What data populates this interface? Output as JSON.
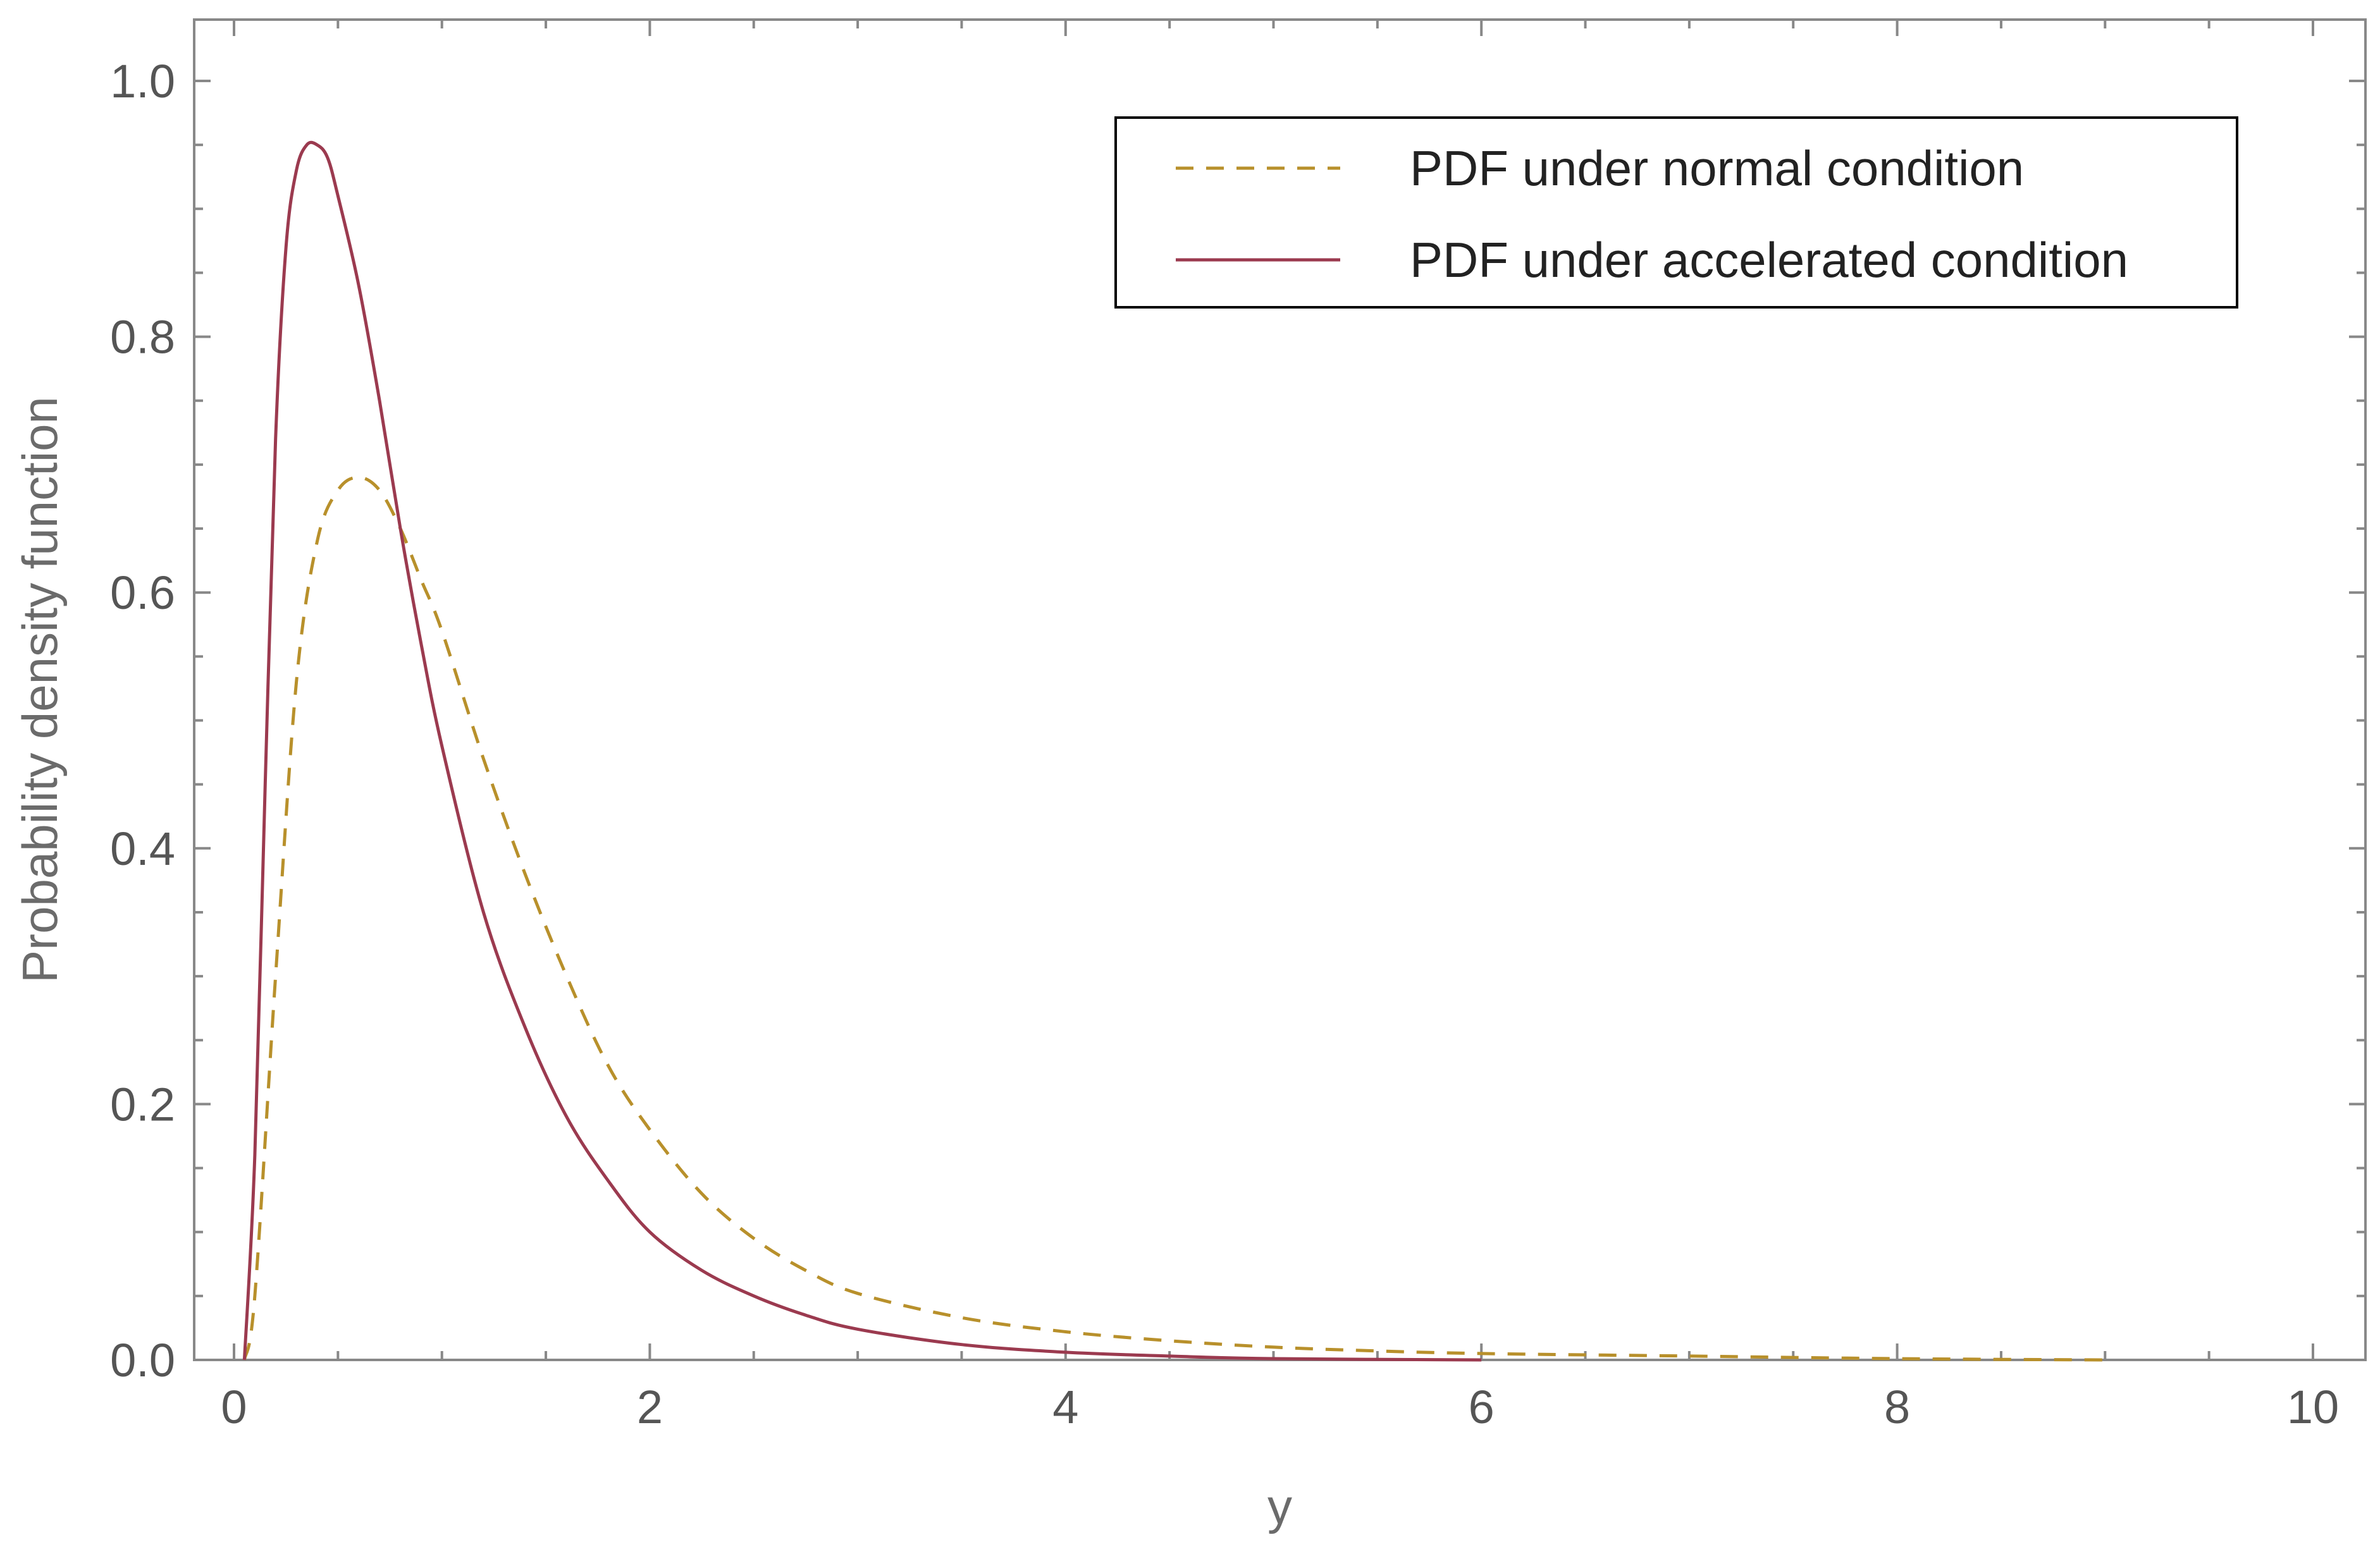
{
  "chart_data": {
    "type": "line",
    "title": "",
    "xlabel": "y",
    "ylabel": "Probability density function",
    "xlim": [
      0,
      10
    ],
    "ylim": [
      0,
      1.0
    ],
    "x_ticks": [
      "0",
      "2",
      "4",
      "6",
      "8",
      "10"
    ],
    "y_ticks": [
      "0.0",
      "0.2",
      "0.4",
      "0.6",
      "0.8",
      "1.0"
    ],
    "grid": false,
    "legend_position": "top-right",
    "series": [
      {
        "name": "PDF under normal condition",
        "style": "dashed",
        "color": "#b8902b",
        "x": [
          0.05,
          0.1,
          0.2,
          0.3,
          0.4,
          0.5,
          0.6,
          0.7,
          0.8,
          0.9,
          1.0,
          1.2,
          1.4,
          1.6,
          1.8,
          2.0,
          2.25,
          2.5,
          2.75,
          3.0,
          3.5,
          4.0,
          4.5,
          5.0,
          5.5,
          6.0,
          7.0,
          8.0,
          9.0
        ],
        "y": [
          0.0,
          0.05,
          0.3,
          0.53,
          0.64,
          0.68,
          0.69,
          0.68,
          0.65,
          0.61,
          0.57,
          0.47,
          0.38,
          0.3,
          0.23,
          0.18,
          0.13,
          0.095,
          0.07,
          0.052,
          0.033,
          0.022,
          0.015,
          0.01,
          0.007,
          0.005,
          0.003,
          0.001,
          0.0
        ]
      },
      {
        "name": "PDF under accelerated condition",
        "style": "solid",
        "color": "#9b3a4f",
        "x": [
          0.05,
          0.1,
          0.15,
          0.2,
          0.25,
          0.3,
          0.35,
          0.4,
          0.45,
          0.5,
          0.6,
          0.7,
          0.8,
          0.9,
          1.0,
          1.2,
          1.4,
          1.6,
          1.8,
          2.0,
          2.25,
          2.5,
          2.75,
          3.0,
          3.5,
          4.0,
          4.5,
          5.0,
          6.0
        ],
        "y": [
          0.0,
          0.16,
          0.45,
          0.72,
          0.87,
          0.93,
          0.95,
          0.95,
          0.94,
          0.91,
          0.84,
          0.75,
          0.65,
          0.56,
          0.48,
          0.35,
          0.26,
          0.19,
          0.14,
          0.1,
          0.07,
          0.05,
          0.035,
          0.024,
          0.012,
          0.006,
          0.003,
          0.001,
          0.0
        ]
      }
    ]
  }
}
